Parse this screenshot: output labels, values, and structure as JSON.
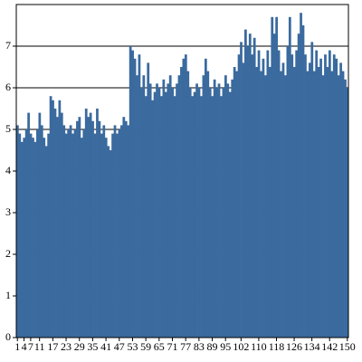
{
  "chart_data": {
    "type": "bar",
    "color": "#3a6a9e",
    "grid": true,
    "categories": [
      "1",
      null,
      null,
      "4",
      null,
      null,
      "7",
      null,
      null,
      null,
      "11",
      null,
      null,
      null,
      null,
      null,
      "17",
      null,
      null,
      null,
      null,
      null,
      "23",
      null,
      null,
      null,
      null,
      null,
      "29",
      null,
      null,
      null,
      null,
      null,
      "35",
      null,
      null,
      null,
      null,
      null,
      "41",
      null,
      null,
      null,
      null,
      null,
      "47",
      null,
      null,
      null,
      null,
      null,
      "53",
      null,
      null,
      null,
      null,
      null,
      "59",
      null,
      null,
      null,
      null,
      null,
      "65",
      null,
      null,
      null,
      null,
      null,
      "71",
      null,
      null,
      null,
      null,
      null,
      "77",
      null,
      null,
      null,
      null,
      null,
      "83",
      null,
      null,
      null,
      null,
      null,
      "89",
      null,
      null,
      null,
      null,
      null,
      "95",
      null,
      null,
      null,
      null,
      null,
      null,
      "102",
      null,
      null,
      null,
      null,
      null,
      null,
      null,
      "110",
      null,
      null,
      null,
      null,
      null,
      null,
      null,
      "118",
      null,
      null,
      null,
      null,
      null,
      null,
      null,
      "126",
      null,
      null,
      null,
      null,
      null,
      null,
      null,
      "134",
      null,
      null,
      null,
      null,
      null,
      null,
      null,
      "142",
      null,
      null,
      null,
      null,
      null,
      null,
      null,
      "150"
    ],
    "values": [
      5.1,
      4.9,
      4.7,
      4.8,
      5.0,
      5.4,
      4.9,
      4.8,
      4.7,
      5.0,
      5.4,
      5.1,
      4.8,
      4.6,
      4.9,
      5.8,
      5.7,
      5.5,
      5.3,
      5.7,
      5.4,
      5.1,
      4.9,
      5.0,
      5.1,
      4.9,
      5.0,
      5.2,
      5.3,
      4.8,
      5.0,
      5.5,
      5.3,
      5.4,
      5.2,
      4.9,
      5.5,
      5.2,
      4.9,
      5.1,
      4.8,
      4.6,
      4.5,
      4.9,
      5.1,
      4.9,
      5.0,
      5.1,
      5.3,
      5.2,
      5.1,
      7.0,
      6.9,
      6.7,
      6.3,
      6.8,
      6.0,
      6.3,
      5.8,
      6.6,
      6.1,
      5.7,
      5.9,
      6.1,
      6.0,
      5.8,
      6.2,
      5.9,
      6.1,
      6.3,
      6.0,
      5.8,
      6.1,
      6.3,
      6.5,
      6.7,
      6.8,
      6.4,
      6.0,
      5.8,
      5.9,
      6.1,
      6.0,
      5.8,
      6.3,
      6.7,
      6.4,
      6.0,
      5.8,
      6.2,
      6.0,
      6.1,
      5.8,
      6.0,
      6.3,
      6.1,
      5.9,
      6.2,
      6.5,
      6.4,
      6.8,
      7.1,
      6.6,
      7.4,
      7.0,
      7.3,
      6.8,
      7.2,
      6.5,
      6.9,
      6.4,
      6.7,
      6.3,
      6.9,
      6.5,
      7.7,
      7.3,
      7.7,
      6.9,
      6.4,
      6.6,
      6.3,
      7.0,
      7.7,
      6.8,
      6.5,
      6.9,
      7.3,
      7.8,
      7.5,
      6.8,
      6.4,
      6.6,
      7.1,
      6.4,
      6.9,
      6.5,
      6.7,
      6.3,
      6.8,
      6.5,
      6.9,
      6.4,
      6.8,
      6.7,
      6.3,
      6.6,
      6.4,
      6.2,
      6.0
    ],
    "ylim": [
      0,
      8
    ],
    "yticks": [
      0,
      1,
      2,
      3,
      4,
      5,
      6,
      7
    ]
  }
}
